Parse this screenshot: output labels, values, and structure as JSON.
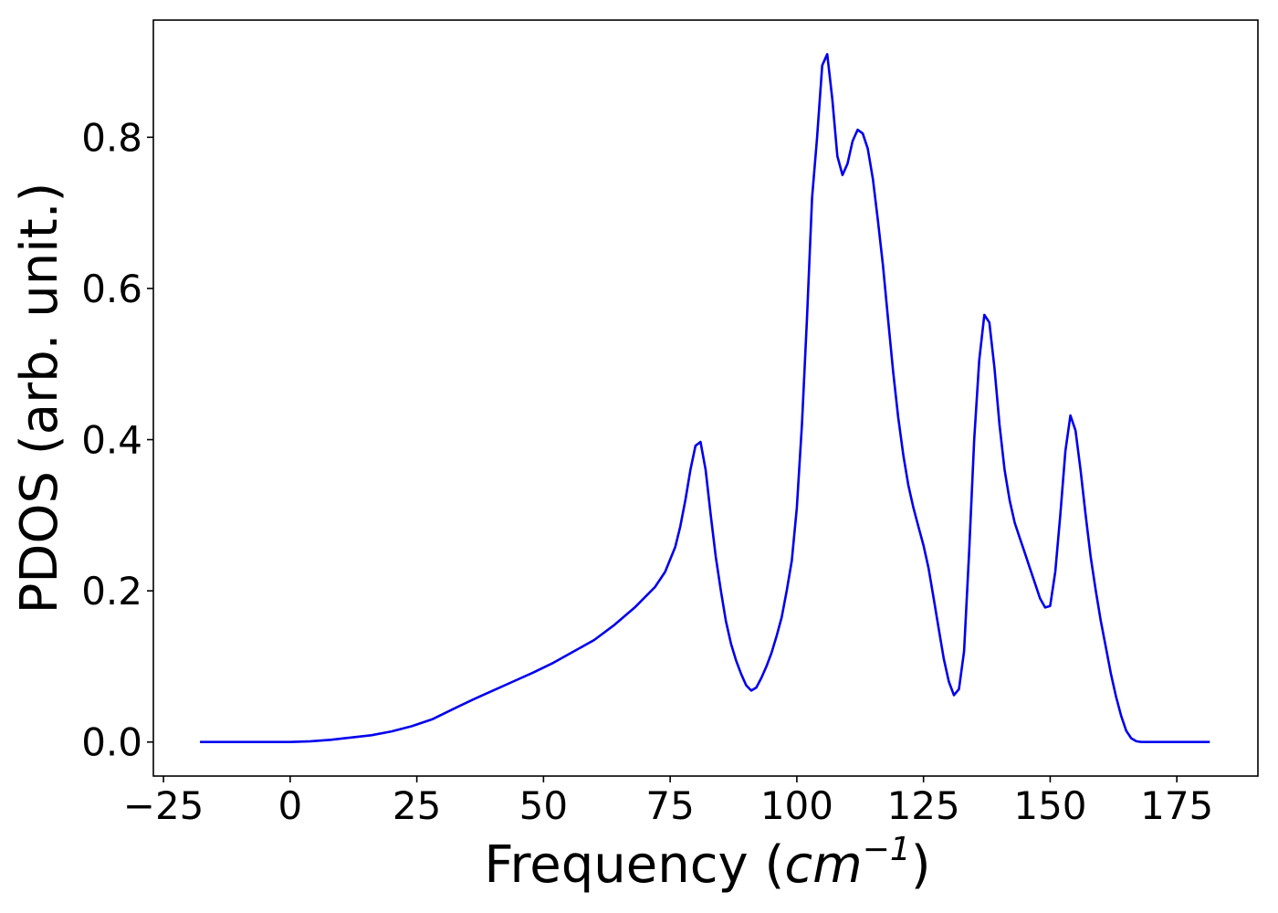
{
  "chart_data": {
    "type": "line",
    "xlabel_prefix": "Frequency (",
    "xlabel_unit_base": "cm",
    "xlabel_unit_exp": "−1",
    "xlabel_suffix": ")",
    "ylabel": "PDOS (arb. unit.)",
    "xlim": [
      -27,
      191
    ],
    "ylim": [
      -0.045,
      0.955
    ],
    "xticks": [
      -25,
      0,
      25,
      50,
      75,
      100,
      125,
      150,
      175
    ],
    "xtick_labels": [
      "−25",
      "0",
      "25",
      "50",
      "75",
      "100",
      "125",
      "150",
      "175"
    ],
    "yticks": [
      0.0,
      0.2,
      0.4,
      0.6,
      0.8
    ],
    "ytick_labels": [
      "0.0",
      "0.2",
      "0.4",
      "0.6",
      "0.8"
    ],
    "grid": false,
    "series": [
      {
        "color": "#0000ee",
        "x": [
          -17.8,
          -10,
          0,
          4,
          8,
          12,
          16,
          20,
          24,
          28,
          32,
          36,
          40,
          44,
          48,
          52,
          56,
          60,
          64,
          68,
          72,
          74,
          76,
          77,
          78,
          79,
          80,
          81,
          82,
          83,
          84,
          85,
          86,
          87,
          88,
          89,
          90,
          91,
          92,
          93,
          94,
          95,
          96,
          97,
          98,
          99,
          100,
          101,
          102,
          103,
          104,
          105,
          106,
          107,
          108,
          109,
          110,
          111,
          112,
          113,
          114,
          115,
          116,
          117,
          118,
          119,
          120,
          121,
          122,
          123,
          124,
          125,
          126,
          127,
          128,
          129,
          130,
          131,
          132,
          133,
          134,
          135,
          136,
          137,
          138,
          139,
          140,
          141,
          142,
          143,
          144,
          145,
          146,
          147,
          148,
          149,
          150,
          151,
          152,
          153,
          154,
          155,
          156,
          157,
          158,
          159,
          160,
          161,
          162,
          163,
          164,
          165,
          166,
          167,
          168,
          169,
          170,
          175,
          181.5
        ],
        "y": [
          0.0,
          0.0,
          0.0,
          0.001,
          0.003,
          0.006,
          0.009,
          0.014,
          0.021,
          0.03,
          0.043,
          0.056,
          0.068,
          0.08,
          0.092,
          0.105,
          0.12,
          0.135,
          0.155,
          0.178,
          0.205,
          0.225,
          0.258,
          0.285,
          0.32,
          0.36,
          0.392,
          0.397,
          0.36,
          0.3,
          0.245,
          0.2,
          0.16,
          0.13,
          0.108,
          0.09,
          0.075,
          0.068,
          0.072,
          0.085,
          0.1,
          0.118,
          0.14,
          0.165,
          0.2,
          0.24,
          0.31,
          0.42,
          0.56,
          0.72,
          0.8,
          0.895,
          0.91,
          0.85,
          0.775,
          0.75,
          0.765,
          0.795,
          0.81,
          0.805,
          0.785,
          0.745,
          0.69,
          0.63,
          0.56,
          0.49,
          0.43,
          0.38,
          0.34,
          0.31,
          0.285,
          0.26,
          0.23,
          0.19,
          0.15,
          0.11,
          0.08,
          0.062,
          0.07,
          0.12,
          0.25,
          0.4,
          0.505,
          0.565,
          0.555,
          0.495,
          0.42,
          0.36,
          0.32,
          0.29,
          0.27,
          0.25,
          0.23,
          0.21,
          0.19,
          0.178,
          0.18,
          0.225,
          0.3,
          0.385,
          0.432,
          0.412,
          0.36,
          0.3,
          0.245,
          0.2,
          0.16,
          0.125,
          0.09,
          0.06,
          0.035,
          0.015,
          0.005,
          0.001,
          0.0,
          0.0,
          0.0,
          0.0,
          0.0
        ]
      }
    ]
  }
}
